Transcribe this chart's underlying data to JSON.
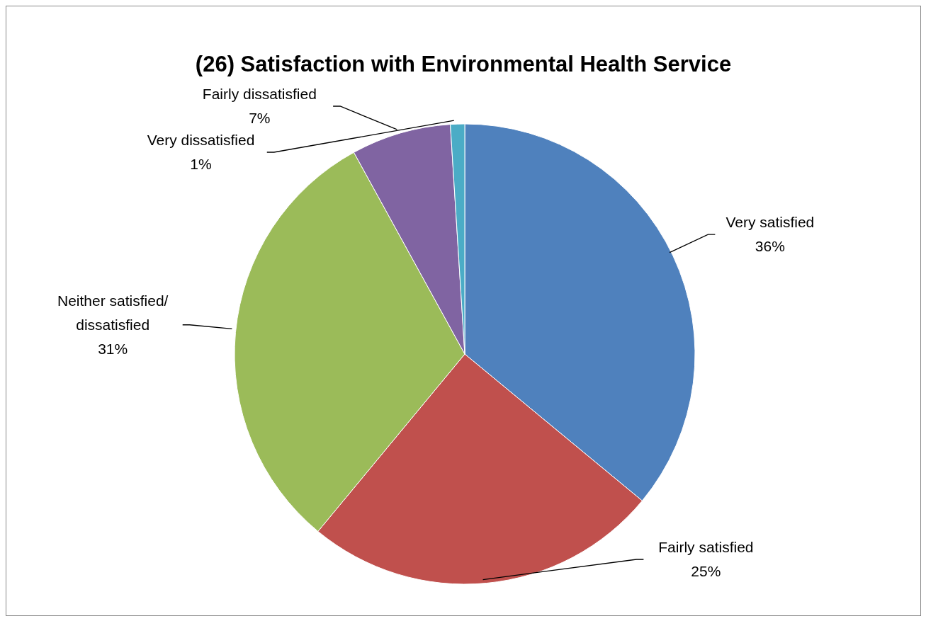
{
  "chart_data": {
    "type": "pie",
    "title": "(26) Satisfaction with Environmental Health Service",
    "categories": [
      "Very satisfied",
      "Fairly satisfied",
      "Neither satisfied/ dissatisfied",
      "Fairly dissatisfied",
      "Very dissatisfied"
    ],
    "values": [
      36,
      25,
      31,
      7,
      1
    ],
    "colors": [
      "#4f81bd",
      "#c0504d",
      "#9bbb59",
      "#8064a2",
      "#4bacc6"
    ],
    "value_labels": [
      "36%",
      "25%",
      "31%",
      "7%",
      "1%"
    ]
  }
}
